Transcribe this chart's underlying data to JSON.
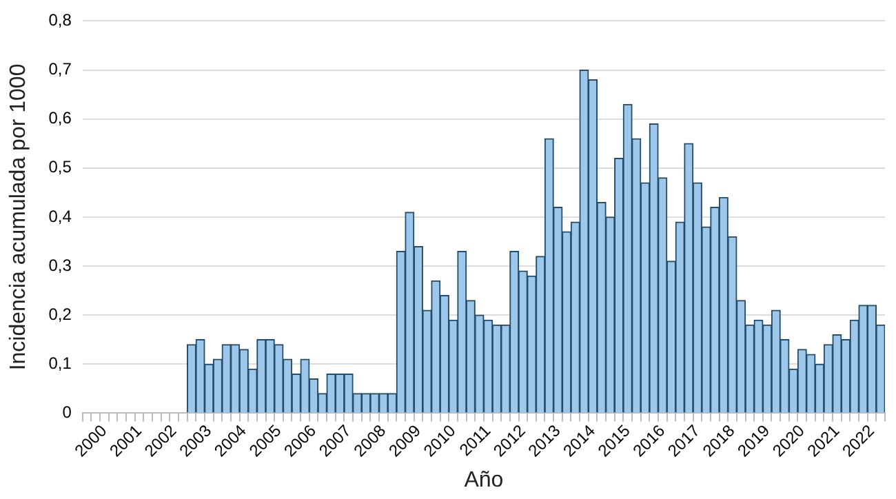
{
  "chart_data": {
    "type": "bar",
    "xlabel": "Año",
    "ylabel": "Incidencia acumulada por 1000",
    "categories": [
      null,
      null,
      "2000",
      null,
      null,
      null,
      "2001",
      null,
      null,
      null,
      "2002",
      null,
      null,
      null,
      "2003",
      null,
      null,
      null,
      "2004",
      null,
      null,
      null,
      "2005",
      null,
      null,
      null,
      "2006",
      null,
      null,
      null,
      "2007",
      null,
      null,
      null,
      "2008",
      null,
      null,
      null,
      "2009",
      null,
      null,
      null,
      "2010",
      null,
      null,
      null,
      "2011",
      null,
      null,
      null,
      "2012",
      null,
      null,
      null,
      "2013",
      null,
      null,
      null,
      "2014",
      null,
      null,
      null,
      "2015",
      null,
      null,
      null,
      "2016",
      null,
      null,
      null,
      "2017",
      null,
      null,
      null,
      "2018",
      null,
      null,
      null,
      "2019",
      null,
      null,
      null,
      "2020",
      null,
      null,
      null,
      "2021",
      null,
      null,
      null,
      "2022",
      null
    ],
    "values": [
      null,
      null,
      null,
      null,
      null,
      null,
      null,
      null,
      null,
      null,
      null,
      null,
      0.14,
      0.15,
      0.1,
      0.11,
      0.14,
      0.14,
      0.13,
      0.09,
      0.15,
      0.15,
      0.14,
      0.11,
      0.08,
      0.11,
      0.07,
      0.04,
      0.08,
      0.08,
      0.08,
      0.04,
      0.04,
      0.04,
      0.04,
      0.04,
      0.33,
      0.41,
      0.34,
      0.21,
      0.27,
      0.24,
      0.19,
      0.33,
      0.23,
      0.2,
      0.19,
      0.18,
      0.18,
      0.33,
      0.29,
      0.28,
      0.32,
      0.56,
      0.42,
      0.37,
      0.39,
      0.7,
      0.68,
      0.43,
      0.4,
      0.52,
      0.63,
      0.56,
      0.47,
      0.59,
      0.48,
      0.31,
      0.39,
      0.55,
      0.47,
      0.38,
      0.42,
      0.44,
      0.36,
      0.23,
      0.18,
      0.19,
      0.18,
      0.21,
      0.15,
      0.09,
      0.13,
      0.12,
      0.1,
      0.14,
      0.16,
      0.15,
      0.19,
      0.22,
      0.22,
      0.18
    ],
    "color": "#9fc7ea",
    "ylim": [
      0,
      0.8
    ],
    "yticks": [
      0,
      {
        "value": 0.1,
        "label": "0,1"
      },
      {
        "value": 0.2,
        "label": "0,2"
      },
      {
        "value": 0.3,
        "label": "0,3"
      },
      {
        "value": 0.4,
        "label": "0,4"
      },
      {
        "value": 0.5,
        "label": "0,5"
      },
      {
        "value": 0.6,
        "label": "0,6"
      },
      {
        "value": 0.7,
        "label": "0,7"
      },
      {
        "value": 0.8,
        "label": "0,8"
      }
    ],
    "grid": "y",
    "legend": false
  }
}
